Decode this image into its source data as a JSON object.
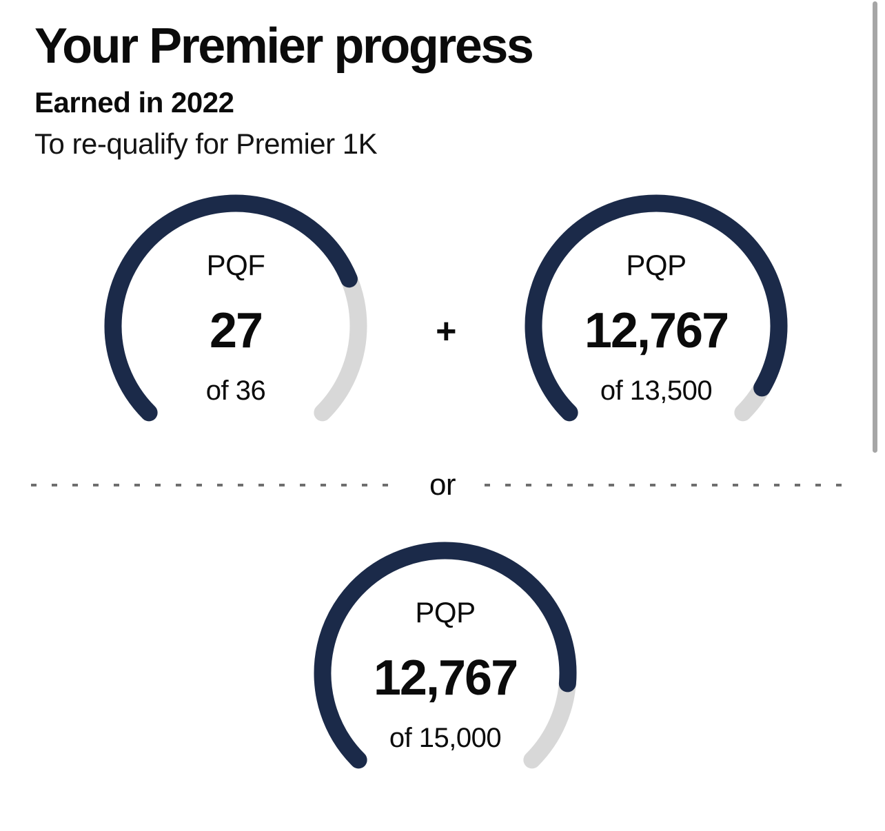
{
  "header": {
    "title": "Your Premier progress",
    "earned": "Earned in 2022",
    "subtitle": "To re-qualify for Premier 1K"
  },
  "plus_label": "+",
  "divider": {
    "or_label": "or"
  },
  "colors": {
    "progress": "#1B2A49",
    "track": "#D8D8D8",
    "text": "#0B0B0B",
    "dash": "#6E6E6E",
    "scrollbar": "#A6A6A6"
  },
  "chart_data": [
    {
      "type": "gauge",
      "title": "PQF",
      "value": 27,
      "max": 36,
      "value_label": "27",
      "of_label": "of 36",
      "arc_degrees": 270
    },
    {
      "type": "gauge",
      "title": "PQP",
      "value": 12767,
      "max": 13500,
      "value_label": "12,767",
      "of_label": "of 13,500",
      "arc_degrees": 270
    },
    {
      "type": "gauge",
      "title": "PQP",
      "value": 12767,
      "max": 15000,
      "value_label": "12,767",
      "of_label": "of 15,000",
      "arc_degrees": 270
    }
  ]
}
